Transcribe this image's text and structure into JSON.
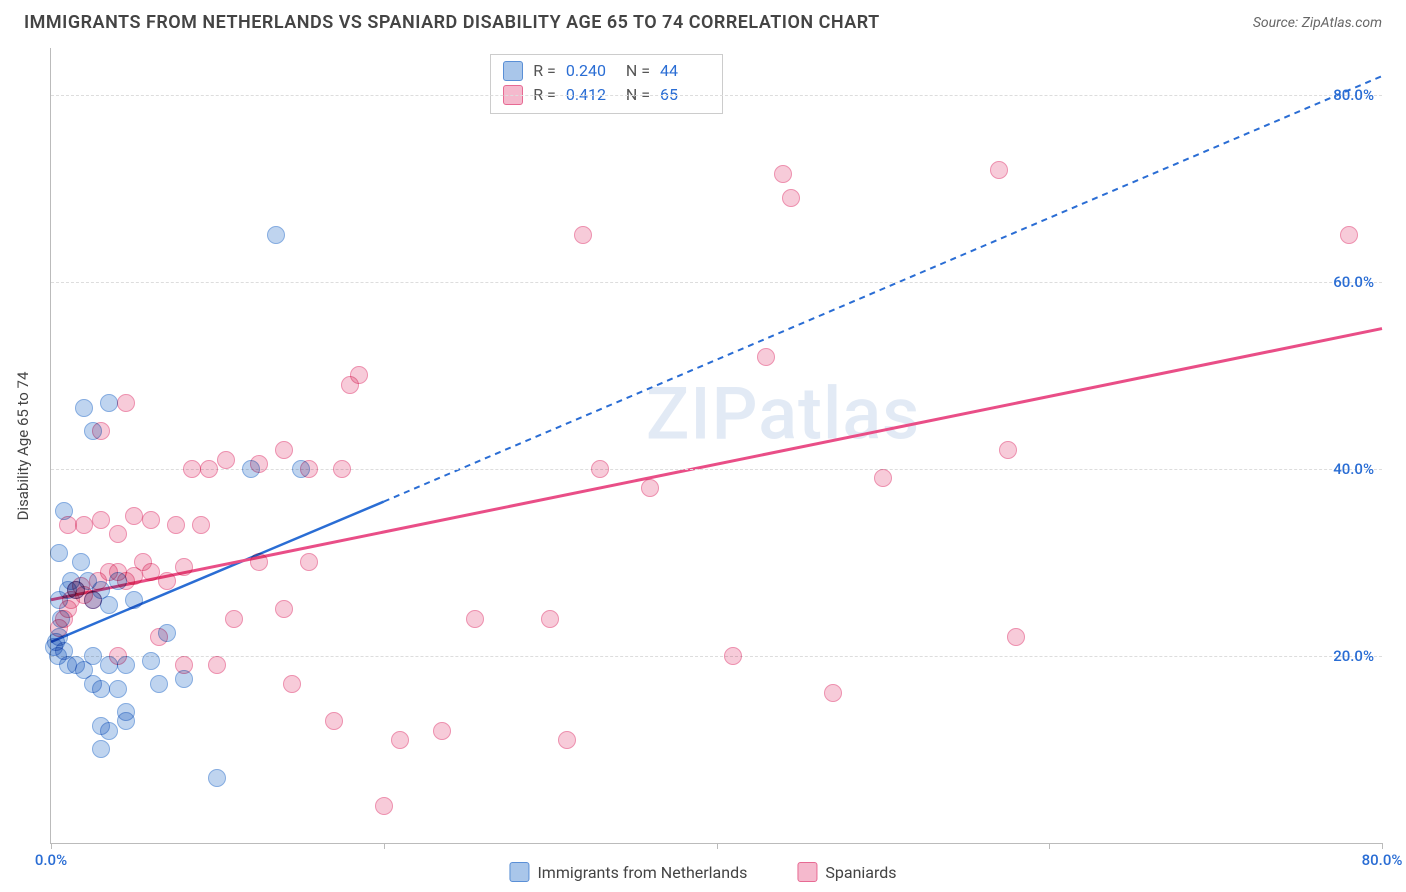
{
  "title": "IMMIGRANTS FROM NETHERLANDS VS SPANIARD DISABILITY AGE 65 TO 74 CORRELATION CHART",
  "source_label": "Source: ZipAtlas.com",
  "watermark_text": "ZIPatlas",
  "watermark_color": "#7fa3d4",
  "y_axis_label": "Disability Age 65 to 74",
  "axis": {
    "xlim": [
      0,
      80
    ],
    "ylim": [
      0,
      85
    ],
    "x_ticks": [
      0,
      20,
      40,
      60,
      80
    ],
    "y_ticks": [
      20,
      40,
      60,
      80
    ],
    "x_tick_labels": [
      "0.0%",
      "",
      "",
      "",
      "80.0%"
    ],
    "y_tick_labels": [
      "20.0%",
      "40.0%",
      "60.0%",
      "80.0%"
    ],
    "tick_color": "#2a6dd4",
    "h_grid_ticks": [
      20,
      40,
      60,
      80
    ]
  },
  "chart": {
    "type": "scatter",
    "background_color": "#ffffff",
    "grid_color": "#dddddd",
    "marker_radius": 9,
    "marker_border_width": 1.5,
    "marker_fill_opacity": 0.35
  },
  "series": [
    {
      "id": "netherlands",
      "label": "Immigrants from Netherlands",
      "color_stroke": "#5a8fd6",
      "color_fill": "#a9c6ea",
      "R": "0.240",
      "N": "44",
      "trend": {
        "x1": 0,
        "y1": 21.5,
        "x2_solid": 20,
        "y2_solid": 36.5,
        "x2_dash": 80,
        "y2_dash": 82,
        "dash": "6,5",
        "width": 2.5,
        "color": "#2a6dd4"
      },
      "points": [
        [
          0.2,
          21
        ],
        [
          0.3,
          21.5
        ],
        [
          0.5,
          22
        ],
        [
          0.4,
          20
        ],
        [
          0.8,
          20.5
        ],
        [
          0.6,
          24
        ],
        [
          0.5,
          26
        ],
        [
          1.0,
          27
        ],
        [
          1.2,
          28
        ],
        [
          1.5,
          27
        ],
        [
          0.5,
          31
        ],
        [
          0.8,
          35.5
        ],
        [
          1.8,
          30
        ],
        [
          2.2,
          28
        ],
        [
          2.5,
          26
        ],
        [
          3.0,
          27
        ],
        [
          3.5,
          25.5
        ],
        [
          4.0,
          28
        ],
        [
          5.0,
          26
        ],
        [
          2.0,
          46.5
        ],
        [
          2.5,
          44
        ],
        [
          3.5,
          47
        ],
        [
          1.0,
          19
        ],
        [
          1.5,
          19
        ],
        [
          2.0,
          18.5
        ],
        [
          2.5,
          20
        ],
        [
          3.5,
          19
        ],
        [
          4.5,
          19
        ],
        [
          6.0,
          19.5
        ],
        [
          2.5,
          17
        ],
        [
          3.0,
          16.5
        ],
        [
          4.0,
          16.5
        ],
        [
          4.5,
          14
        ],
        [
          6.5,
          17
        ],
        [
          8.0,
          17.5
        ],
        [
          3.0,
          12.5
        ],
        [
          3.5,
          12
        ],
        [
          4.5,
          13
        ],
        [
          3.0,
          10
        ],
        [
          10.0,
          7
        ],
        [
          12.0,
          40
        ],
        [
          13.5,
          65
        ],
        [
          7.0,
          22.5
        ],
        [
          15.0,
          40
        ]
      ]
    },
    {
      "id": "spaniards",
      "label": "Spaniards",
      "color_stroke": "#e76a93",
      "color_fill": "#f5b9cd",
      "R": "0.412",
      "N": "65",
      "trend": {
        "x1": 0,
        "y1": 26,
        "x2_solid": 80,
        "y2_solid": 55,
        "dash": null,
        "width": 3,
        "color": "#e94e87"
      },
      "points": [
        [
          0.5,
          23
        ],
        [
          0.8,
          24
        ],
        [
          1.0,
          25
        ],
        [
          1.2,
          26
        ],
        [
          1.5,
          27
        ],
        [
          1.8,
          27.5
        ],
        [
          2.0,
          26.5
        ],
        [
          2.5,
          26
        ],
        [
          2.8,
          28
        ],
        [
          3.5,
          29
        ],
        [
          4.0,
          29
        ],
        [
          4.5,
          28
        ],
        [
          5.0,
          28.5
        ],
        [
          5.5,
          30
        ],
        [
          6.0,
          29
        ],
        [
          7.0,
          28
        ],
        [
          8.0,
          29.5
        ],
        [
          1.0,
          34
        ],
        [
          2.0,
          34
        ],
        [
          3.0,
          34.5
        ],
        [
          4.0,
          33
        ],
        [
          5.0,
          35
        ],
        [
          6.0,
          34.5
        ],
        [
          7.5,
          34
        ],
        [
          9.0,
          34
        ],
        [
          3.0,
          44
        ],
        [
          4.5,
          47
        ],
        [
          8.5,
          40
        ],
        [
          9.5,
          40
        ],
        [
          10.5,
          41
        ],
        [
          12.5,
          40.5
        ],
        [
          14.0,
          42
        ],
        [
          15.5,
          40
        ],
        [
          17.5,
          40
        ],
        [
          18.0,
          49
        ],
        [
          18.5,
          50
        ],
        [
          4.0,
          20
        ],
        [
          10.0,
          19
        ],
        [
          11.0,
          24
        ],
        [
          12.5,
          30
        ],
        [
          14.0,
          25
        ],
        [
          15.5,
          30
        ],
        [
          14.5,
          17
        ],
        [
          17.0,
          13
        ],
        [
          23.5,
          12
        ],
        [
          30.0,
          24
        ],
        [
          31.0,
          11
        ],
        [
          36.0,
          38
        ],
        [
          32.0,
          65
        ],
        [
          41.0,
          20
        ],
        [
          43.0,
          52
        ],
        [
          44.0,
          71.5
        ],
        [
          44.5,
          69
        ],
        [
          47.0,
          16
        ],
        [
          57.0,
          72
        ],
        [
          57.5,
          42
        ],
        [
          58.0,
          22
        ],
        [
          78.0,
          65
        ],
        [
          20.0,
          4
        ],
        [
          21.0,
          11
        ],
        [
          8.0,
          19
        ],
        [
          6.5,
          22
        ],
        [
          25.5,
          24
        ],
        [
          33.0,
          40
        ],
        [
          50.0,
          39
        ]
      ]
    }
  ],
  "stats_box": {
    "rows": [
      {
        "swatch_fill": "#a9c6ea",
        "swatch_stroke": "#5a8fd6",
        "R": "0.240",
        "N": "44"
      },
      {
        "swatch_fill": "#f5b9cd",
        "swatch_stroke": "#e76a93",
        "R": "0.412",
        "N": "65"
      }
    ]
  },
  "bottom_legend": [
    {
      "swatch_fill": "#a9c6ea",
      "swatch_stroke": "#5a8fd6",
      "label": "Immigrants from Netherlands"
    },
    {
      "swatch_fill": "#f5b9cd",
      "swatch_stroke": "#e76a93",
      "label": "Spaniards"
    }
  ]
}
